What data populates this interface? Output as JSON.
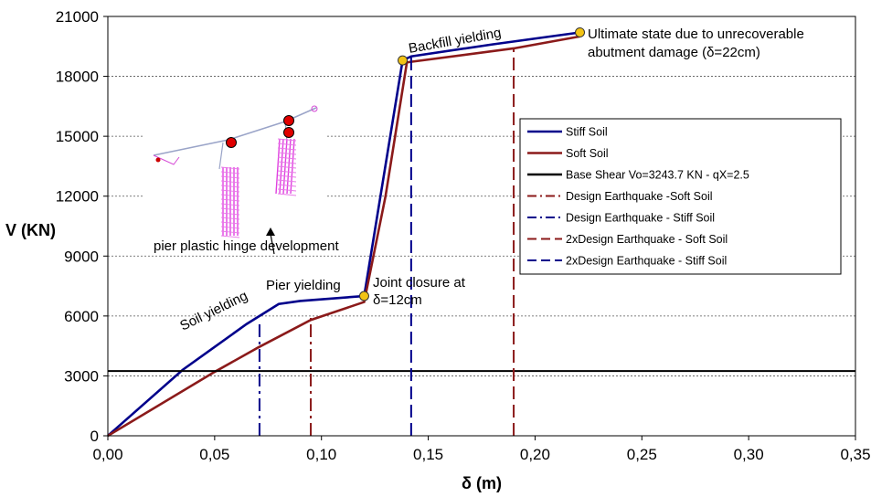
{
  "chart_data": {
    "type": "line",
    "xlabel": "δ (m)",
    "ylabel": "V (KN)",
    "xlim": [
      0,
      0.35
    ],
    "ylim": [
      0,
      21000
    ],
    "x_ticks": [
      0,
      0.05,
      0.1,
      0.15,
      0.2,
      0.25,
      0.3,
      0.35
    ],
    "x_tick_labels": [
      "0,00",
      "0,05",
      "0,10",
      "0,15",
      "0,20",
      "0,25",
      "0,30",
      "0,35"
    ],
    "y_ticks": [
      0,
      3000,
      6000,
      9000,
      12000,
      15000,
      18000,
      21000
    ],
    "y_tick_labels": [
      "0",
      "3000",
      "6000",
      "9000",
      "12000",
      "15000",
      "18000",
      "21000"
    ],
    "grid": "horizontal-dotted",
    "legend_position": "right",
    "series": [
      {
        "name": "Stiff Soil",
        "color": "#00008B",
        "style": "solid",
        "points": [
          [
            0,
            0
          ],
          [
            0.035,
            3300
          ],
          [
            0.065,
            5600
          ],
          [
            0.08,
            6600
          ],
          [
            0.09,
            6750
          ],
          [
            0.12,
            7000
          ],
          [
            0.138,
            18800
          ],
          [
            0.142,
            19000
          ],
          [
            0.18,
            19600
          ],
          [
            0.221,
            20200
          ]
        ]
      },
      {
        "name": "Soft Soil",
        "color": "#8B1A1A",
        "style": "solid",
        "points": [
          [
            0,
            0
          ],
          [
            0.05,
            3200
          ],
          [
            0.07,
            4400
          ],
          [
            0.095,
            5800
          ],
          [
            0.12,
            6700
          ],
          [
            0.13,
            12000
          ],
          [
            0.14,
            18700
          ],
          [
            0.19,
            19400
          ],
          [
            0.221,
            20000
          ]
        ]
      },
      {
        "name": "Base Shear Vo=3243.7 KN - qX=2.5",
        "color": "#000000",
        "style": "solid",
        "points": [
          [
            0,
            3243.7
          ],
          [
            0.35,
            3243.7
          ]
        ]
      },
      {
        "name": "Design Earthquake -Soft Soil",
        "color": "#8B1A1A",
        "style": "dashdot",
        "points": [
          [
            0.095,
            0
          ],
          [
            0.095,
            5900
          ]
        ]
      },
      {
        "name": "Design Earthquake - Stiff Soil",
        "color": "#00008B",
        "style": "dashdot",
        "points": [
          [
            0.071,
            0
          ],
          [
            0.071,
            5700
          ]
        ]
      },
      {
        "name": "2xDesign Earthquake - Soft Soil",
        "color": "#8B1A1A",
        "style": "dashed",
        "points": [
          [
            0.19,
            0
          ],
          [
            0.19,
            19400
          ]
        ]
      },
      {
        "name": "2xDesign Earthquake - Stiff Soil",
        "color": "#00008B",
        "style": "dashed",
        "points": [
          [
            0.142,
            0
          ],
          [
            0.142,
            19000
          ]
        ]
      }
    ],
    "markers": [
      {
        "x": 0.12,
        "y": 7000,
        "color": "#F2C314"
      },
      {
        "x": 0.138,
        "y": 18800,
        "color": "#F2C314"
      },
      {
        "x": 0.221,
        "y": 20200,
        "color": "#F2C314"
      }
    ],
    "annotations": [
      {
        "text": "Soil yielding"
      },
      {
        "text": "Pier yielding"
      },
      {
        "text": "Joint closure at"
      },
      {
        "text": "δ=12cm"
      },
      {
        "text": "Backfill yielding"
      },
      {
        "text": "Ultimate state due to unrecoverable"
      },
      {
        "text": "abutment damage (δ=22cm)"
      },
      {
        "text": "pier plastic hinge development"
      }
    ]
  }
}
